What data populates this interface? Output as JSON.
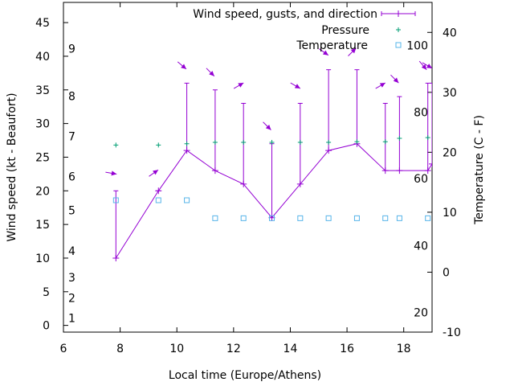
{
  "chart_data": {
    "type": "line",
    "title": "",
    "xlabel": "Local time (Europe/Athens)",
    "ylabel": "Wind speed (kt - Beaufort)",
    "y2label": "Temperature (C - F)",
    "xlim": [
      6,
      19
    ],
    "ylim": [
      -1,
      48
    ],
    "y2lim": [
      -10,
      45
    ],
    "xticks": [
      6,
      8,
      10,
      12,
      14,
      16,
      18
    ],
    "yticks": [
      0,
      5,
      10,
      15,
      20,
      25,
      30,
      35,
      40,
      45
    ],
    "y2ticks": [
      -10,
      0,
      10,
      20,
      30,
      40
    ],
    "beaufort_labels": [
      {
        "label": "1",
        "y": 1.1
      },
      {
        "label": "2",
        "y": 4.1
      },
      {
        "label": "3",
        "y": 7.1
      },
      {
        "label": "4",
        "y": 11.1
      },
      {
        "label": "5",
        "y": 17.1
      },
      {
        "label": "6",
        "y": 22.1
      },
      {
        "label": "7",
        "y": 28.1
      },
      {
        "label": "8",
        "y": 34.1
      },
      {
        "label": "9",
        "y": 41.1
      }
    ],
    "fahrenheit_labels": [
      {
        "label": "20",
        "y": -6.7
      },
      {
        "label": "40",
        "y": 4.4
      },
      {
        "label": "60",
        "y": 15.6
      },
      {
        "label": "80",
        "y": 26.7
      },
      {
        "label": "100",
        "y": 37.8
      }
    ],
    "legend": {
      "position": "top-right",
      "entries": [
        "Wind speed, gusts, and direction",
        "Pressure",
        "Temperature"
      ]
    },
    "colors": {
      "wind": "#9400d3",
      "pressure": "#009e73",
      "temperature": "#56b4e9"
    },
    "series": [
      {
        "name": "Wind speed, gusts, and direction",
        "x": [
          7.85,
          9.35,
          10.35,
          11.35,
          12.35,
          13.35,
          14.35,
          15.35,
          16.35,
          17.35,
          17.85,
          18.85,
          19
        ],
        "values": [
          10,
          20,
          26,
          23,
          21,
          16,
          21,
          26,
          27,
          23,
          23,
          23,
          24
        ],
        "gusts": [
          20,
          20,
          36,
          35,
          33,
          27,
          33,
          38,
          38,
          33,
          34,
          36,
          36
        ],
        "direction_deg": [
          100,
          55,
          130,
          135,
          60,
          135,
          120,
          125,
          45,
          60,
          135,
          140,
          120
        ]
      },
      {
        "name": "Pressure",
        "x": [
          7.85,
          9.35,
          10.35,
          11.35,
          12.35,
          13.35,
          14.35,
          15.35,
          16.35,
          17.35,
          17.85,
          18.85
        ],
        "values": [
          26.8,
          26.8,
          27.0,
          27.2,
          27.2,
          27.2,
          27.2,
          27.2,
          27.3,
          27.3,
          27.8,
          27.9
        ]
      },
      {
        "name": "Temperature",
        "x": [
          7.85,
          9.35,
          10.35,
          11.35,
          12.35,
          13.35,
          14.35,
          15.35,
          16.35,
          17.35,
          17.85,
          18.85
        ],
        "values": [
          12,
          12,
          12,
          9,
          9,
          9,
          9,
          9,
          9,
          9,
          9,
          9
        ]
      }
    ]
  }
}
